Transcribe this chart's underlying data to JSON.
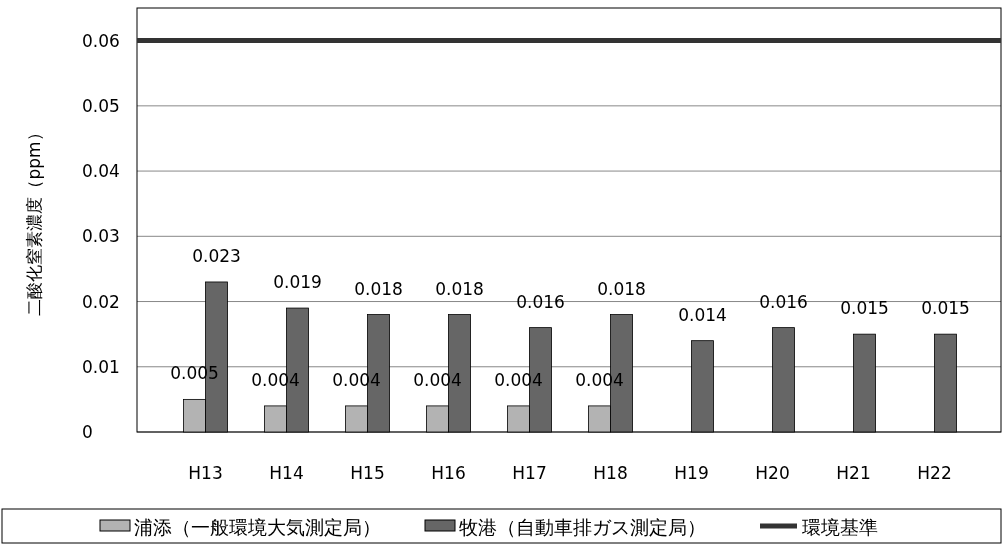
{
  "chart_data": {
    "type": "bar",
    "ylabel": "二酸化窒素濃度（ppm）",
    "categories": [
      "H13",
      "H14",
      "H15",
      "H16",
      "H17",
      "H18",
      "H19",
      "H20",
      "H21",
      "H22"
    ],
    "series": [
      {
        "name": "浦添（一般環境大気測定局）",
        "color": "#b3b3b3",
        "values": [
          0.005,
          0.004,
          0.004,
          0.004,
          0.004,
          0.004,
          null,
          null,
          null,
          null
        ]
      },
      {
        "name": "牧港（自動車排ガス測定局）",
        "color": "#666666",
        "values": [
          0.023,
          0.019,
          0.018,
          0.018,
          0.016,
          0.018,
          0.014,
          0.016,
          0.015,
          0.015
        ]
      }
    ],
    "ref_lines": [
      {
        "axis": "y",
        "value": 0.06,
        "label": "環境基準",
        "color": "#333333"
      }
    ],
    "ylim": [
      0,
      0.065
    ],
    "yticks": [
      0,
      0.01,
      0.02,
      0.03,
      0.04,
      0.05,
      0.06
    ],
    "grid": "y",
    "legend": "bottom",
    "data_labels": true
  }
}
